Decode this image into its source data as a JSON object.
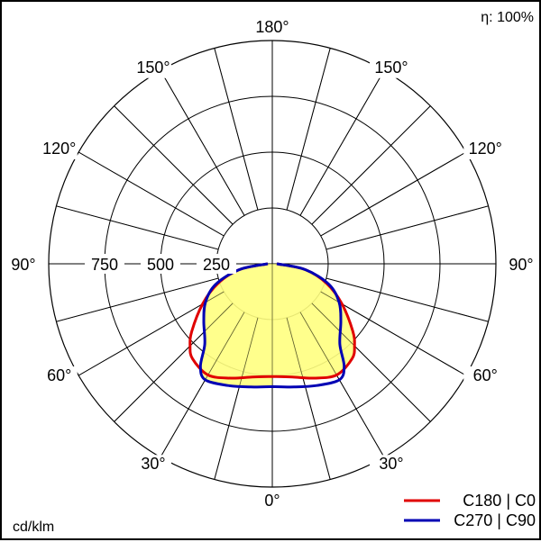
{
  "chart_data": {
    "type": "polar",
    "efficiency_label": "η: 100%",
    "unit_label": "cd/klm",
    "radial_ticks": [
      250,
      500,
      750
    ],
    "radial_tick_labels": [
      "250",
      "500",
      "750"
    ],
    "r_max": 1000,
    "angle_labels": {
      "bottom": "0°",
      "top": "180°",
      "left": [
        "30°",
        "60°",
        "90°",
        "120°",
        "150°"
      ],
      "right": [
        "30°",
        "60°",
        "90°",
        "120°",
        "150°"
      ]
    },
    "grid": true,
    "legend_position": "bottom-right",
    "series": [
      {
        "name": "C180 | C0",
        "color": "#e00000",
        "angles": [
          0,
          10,
          20,
          30,
          40,
          45,
          50,
          60,
          70,
          80,
          90
        ],
        "values": [
          505,
          515,
          545,
          575,
          555,
          520,
          470,
          360,
          260,
          150,
          20
        ]
      },
      {
        "name": "C270 | C90",
        "color": "#0000b4",
        "angles": [
          0,
          10,
          20,
          30,
          35,
          40,
          50,
          60,
          70,
          80,
          90
        ],
        "values": [
          550,
          560,
          580,
          600,
          560,
          470,
          400,
          345,
          270,
          150,
          20
        ]
      }
    ],
    "fill_color": "#ffff80"
  }
}
